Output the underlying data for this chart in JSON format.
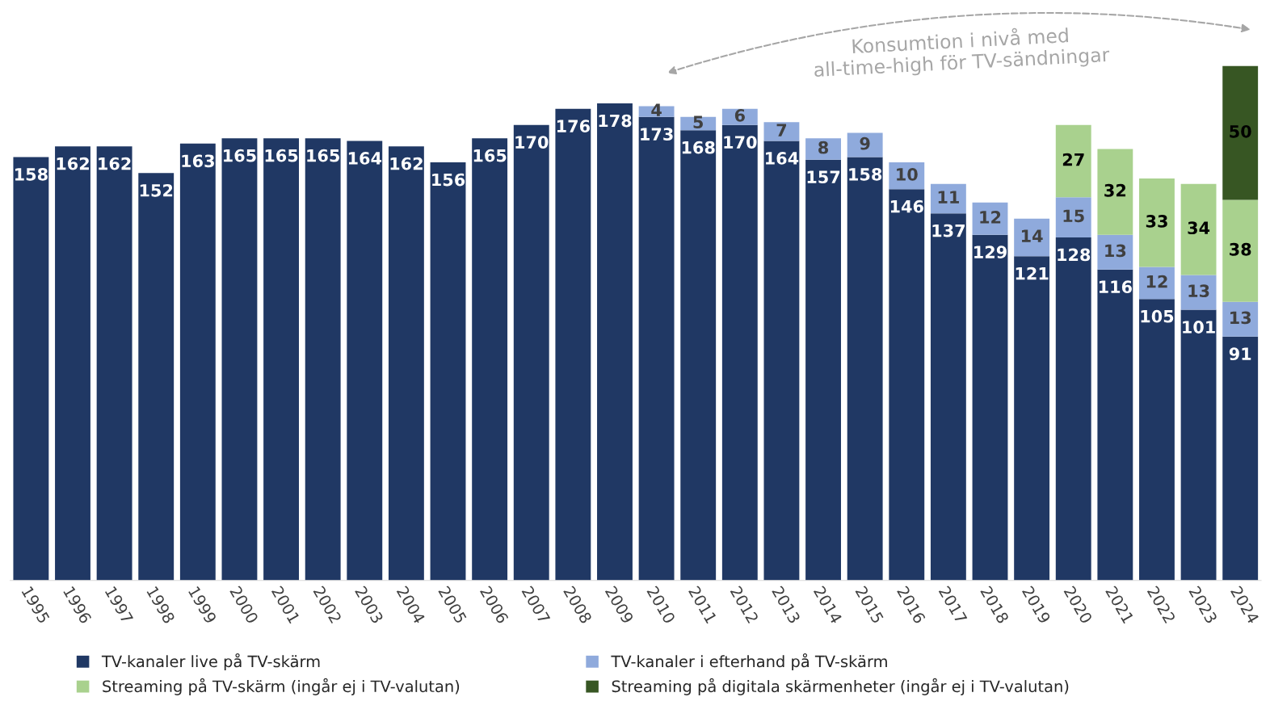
{
  "chart_data": {
    "type": "bar",
    "stacked": true,
    "data_labels": true,
    "legend": "bottom",
    "categories": [
      "1995",
      "1996",
      "1997",
      "1998",
      "1999",
      "2000",
      "2001",
      "2002",
      "2003",
      "2004",
      "2005",
      "2006",
      "2007",
      "2008",
      "2009",
      "2010",
      "2011",
      "2012",
      "2013",
      "2014",
      "2015",
      "2016",
      "2017",
      "2018",
      "2019",
      "2020",
      "2021",
      "2022",
      "2023",
      "2024"
    ],
    "series": [
      {
        "name": "TV-kanaler live på TV-skärm",
        "color": "#203864",
        "values": [
          158,
          162,
          162,
          152,
          163,
          165,
          165,
          165,
          164,
          162,
          156,
          165,
          170,
          176,
          178,
          173,
          168,
          170,
          164,
          157,
          158,
          146,
          137,
          129,
          121,
          128,
          116,
          105,
          101,
          91
        ]
      },
      {
        "name": "TV-kanaler i efterhand på TV-skärm",
        "color": "#8faadc",
        "values": [
          null,
          null,
          null,
          null,
          null,
          null,
          null,
          null,
          null,
          null,
          null,
          null,
          null,
          null,
          null,
          4,
          5,
          6,
          7,
          8,
          9,
          10,
          11,
          12,
          14,
          15,
          13,
          12,
          13,
          13
        ]
      },
      {
        "name": "Streaming på TV-skärm (ingår ej i TV-valutan)",
        "color": "#a9d18e",
        "values": [
          null,
          null,
          null,
          null,
          null,
          null,
          null,
          null,
          null,
          null,
          null,
          null,
          null,
          null,
          null,
          null,
          null,
          null,
          null,
          null,
          null,
          null,
          null,
          null,
          null,
          27,
          32,
          33,
          34,
          38
        ]
      },
      {
        "name": "Streaming på digitala skärmenheter (ingår ej i TV-valutan)",
        "color": "#375623",
        "values": [
          null,
          null,
          null,
          null,
          null,
          null,
          null,
          null,
          null,
          null,
          null,
          null,
          null,
          null,
          null,
          null,
          null,
          null,
          null,
          null,
          null,
          null,
          null,
          null,
          null,
          null,
          null,
          null,
          null,
          50
        ]
      }
    ],
    "annotations": [
      "Konsumtion i nivå med\nall-time-high för TV-sändningar"
    ]
  }
}
